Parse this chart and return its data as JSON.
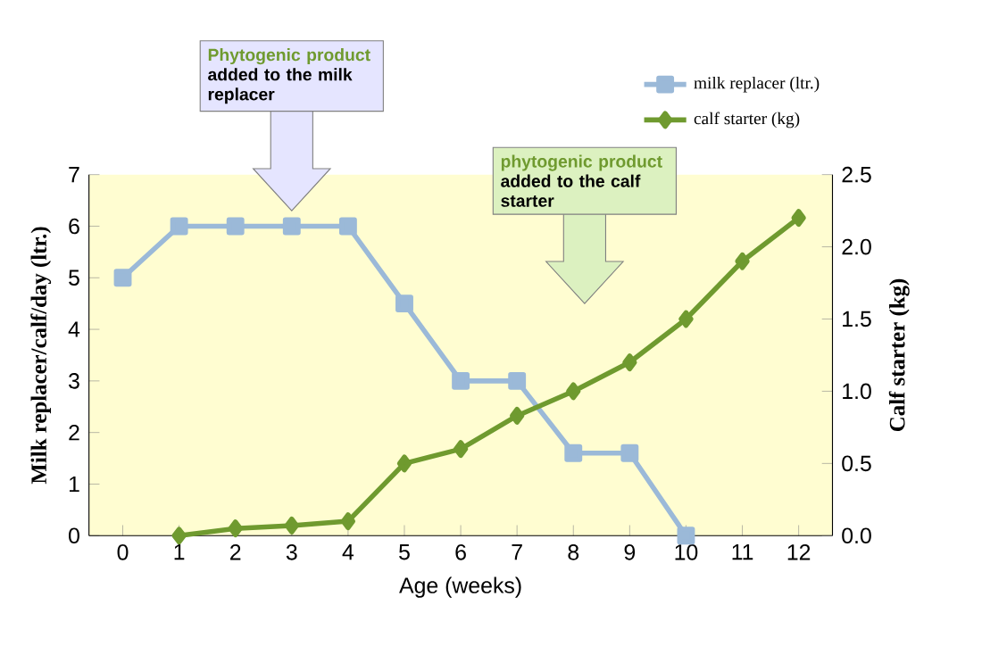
{
  "chart_data": {
    "type": "line",
    "xlabel": "Age (weeks)",
    "ylabel": "Milk replacer/calf/day (ltr.)",
    "y2label": "Calf starter (kg)",
    "series": [
      {
        "name": "milk replacer (ltr.)",
        "color": "#9bb9d8",
        "marker": "square",
        "x": [
          0,
          1,
          2,
          3,
          4,
          5,
          6,
          7,
          8,
          9,
          10
        ],
        "values": [
          5,
          6,
          6,
          6,
          6,
          4.5,
          3,
          3,
          1.6,
          1.6,
          0
        ]
      },
      {
        "name": "calf starter (kg)",
        "color": "#6f9a2f",
        "marker": "diamond",
        "axis": "y2",
        "x": [
          1,
          2,
          3,
          4,
          5,
          6,
          7,
          8,
          9,
          10,
          11,
          12
        ],
        "values": [
          0,
          0.05,
          0.07,
          0.1,
          0.5,
          0.6,
          0.83,
          1.0,
          1.2,
          1.5,
          1.9,
          2.2
        ]
      }
    ],
    "xlim": [
      -0.6,
      12.6
    ],
    "xticks": [
      0,
      1,
      2,
      3,
      4,
      5,
      6,
      7,
      8,
      9,
      10,
      11,
      12
    ],
    "ylim": [
      0,
      7
    ],
    "yticks": [
      0,
      1,
      2,
      3,
      4,
      5,
      6,
      7
    ],
    "y2lim": [
      0,
      2.5
    ],
    "y2ticks": [
      {
        "value": 0,
        "label": "0.0"
      },
      {
        "value": 0.5,
        "label": "0.5"
      },
      {
        "value": 1,
        "label": "1.0"
      },
      {
        "value": 1.5,
        "label": "1.5"
      },
      {
        "value": 2,
        "label": "2.0"
      },
      {
        "value": 2.5,
        "label": "2.5"
      }
    ],
    "legend": "top right",
    "annotations": [
      "Phytogenic product",
      "added to the milk replacer",
      "phytogenic product",
      "added to the calf starter"
    ]
  }
}
